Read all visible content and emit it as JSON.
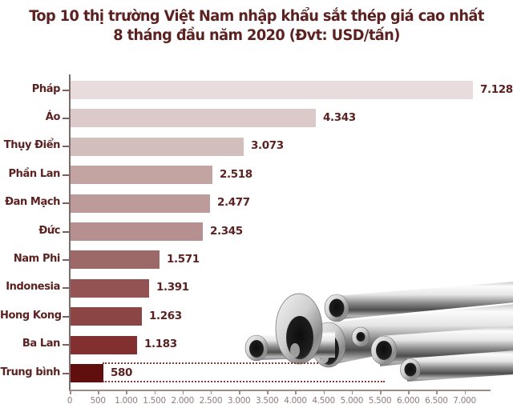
{
  "title": {
    "line1": "Top 10 thị trường Việt Nam nhập khẩu sắt thép giá cao nhất",
    "line2": "8 tháng đầu năm 2020 (Đvt: USD/tấn)"
  },
  "chart_data": {
    "type": "bar",
    "orientation": "horizontal",
    "title": "Top 10 thị trường Việt Nam nhập khẩu sắt thép giá cao nhất 8 tháng đầu năm 2020",
    "unit": "USD/tấn",
    "categories": [
      "Pháp",
      "Áo",
      "Thụy Điển",
      "Phần Lan",
      "Đan Mạch",
      "Đức",
      "Nam Phi",
      "Indonesia",
      "Hong Kong",
      "Ba Lan",
      "Trung bình"
    ],
    "values": [
      7128,
      4343,
      3073,
      2518,
      2477,
      2345,
      1571,
      1391,
      1263,
      1183,
      580
    ],
    "value_labels": [
      "7.128",
      "4.343",
      "3.073",
      "2.518",
      "2.477",
      "2.345",
      "1.571",
      "1.391",
      "1.263",
      "1.183",
      "580"
    ],
    "bar_colors": [
      "#e9dcdc",
      "#dccaca",
      "#d3bebe",
      "#c4a3a3",
      "#bd9b9b",
      "#b69090",
      "#9d6868",
      "#945353",
      "#8c4545",
      "#812f2f",
      "#600e0e"
    ],
    "x_ticks": [
      0,
      500,
      1000,
      1500,
      2000,
      2500,
      3000,
      3500,
      4000,
      4500,
      5000,
      5500,
      6000,
      6500,
      7000
    ],
    "x_tick_labels": [
      "0",
      "500",
      "1.000",
      "1.500",
      "2.000",
      "2.500",
      "3.000",
      "3.500",
      "4.000",
      "4.500",
      "5.000",
      "5.500",
      "6.000",
      "6.500",
      "7.000"
    ],
    "xlim": [
      0,
      7460
    ],
    "grid": false,
    "legend": false,
    "annotation": "dotted lines extending from top and bottom edges of the Trung bình (average) bar",
    "colors": {
      "text": "#5c2121",
      "axis": "#a18b8b",
      "tick_text": "#8f7c7c",
      "dotted_line": "#8c3b3b"
    }
  }
}
